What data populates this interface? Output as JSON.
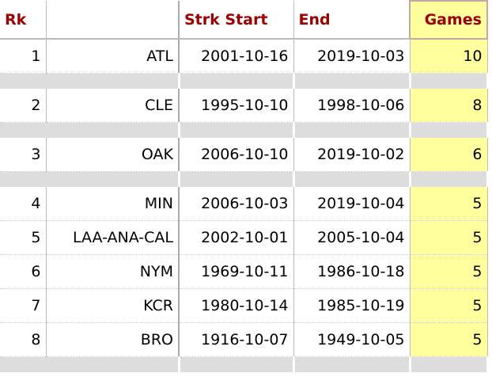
{
  "table": {
    "headers": {
      "rk": "Rk",
      "start": "Strk Start",
      "end": "End",
      "games": "Games"
    },
    "groups": [
      [
        {
          "rk": 1,
          "team": "ATL",
          "start": "2001-10-16",
          "end": "2019-10-03",
          "games": 10
        }
      ],
      [
        {
          "rk": 2,
          "team": "CLE",
          "start": "1995-10-10",
          "end": "1998-10-06",
          "games": 8
        }
      ],
      [
        {
          "rk": 3,
          "team": "OAK",
          "start": "2006-10-10",
          "end": "2019-10-02",
          "games": 6
        }
      ],
      [
        {
          "rk": 4,
          "team": "MIN",
          "start": "2006-10-03",
          "end": "2019-10-04",
          "games": 5
        },
        {
          "rk": 5,
          "team": "LAA-ANA-CAL",
          "start": "2002-10-01",
          "end": "2005-10-04",
          "games": 5
        },
        {
          "rk": 6,
          "team": "NYM",
          "start": "1969-10-11",
          "end": "1986-10-18",
          "games": 5
        },
        {
          "rk": 7,
          "team": "KCR",
          "start": "1980-10-14",
          "end": "1985-10-19",
          "games": 5
        },
        {
          "rk": 8,
          "team": "BRO",
          "start": "1916-10-07",
          "end": "1949-10-05",
          "games": 5
        }
      ]
    ]
  }
}
